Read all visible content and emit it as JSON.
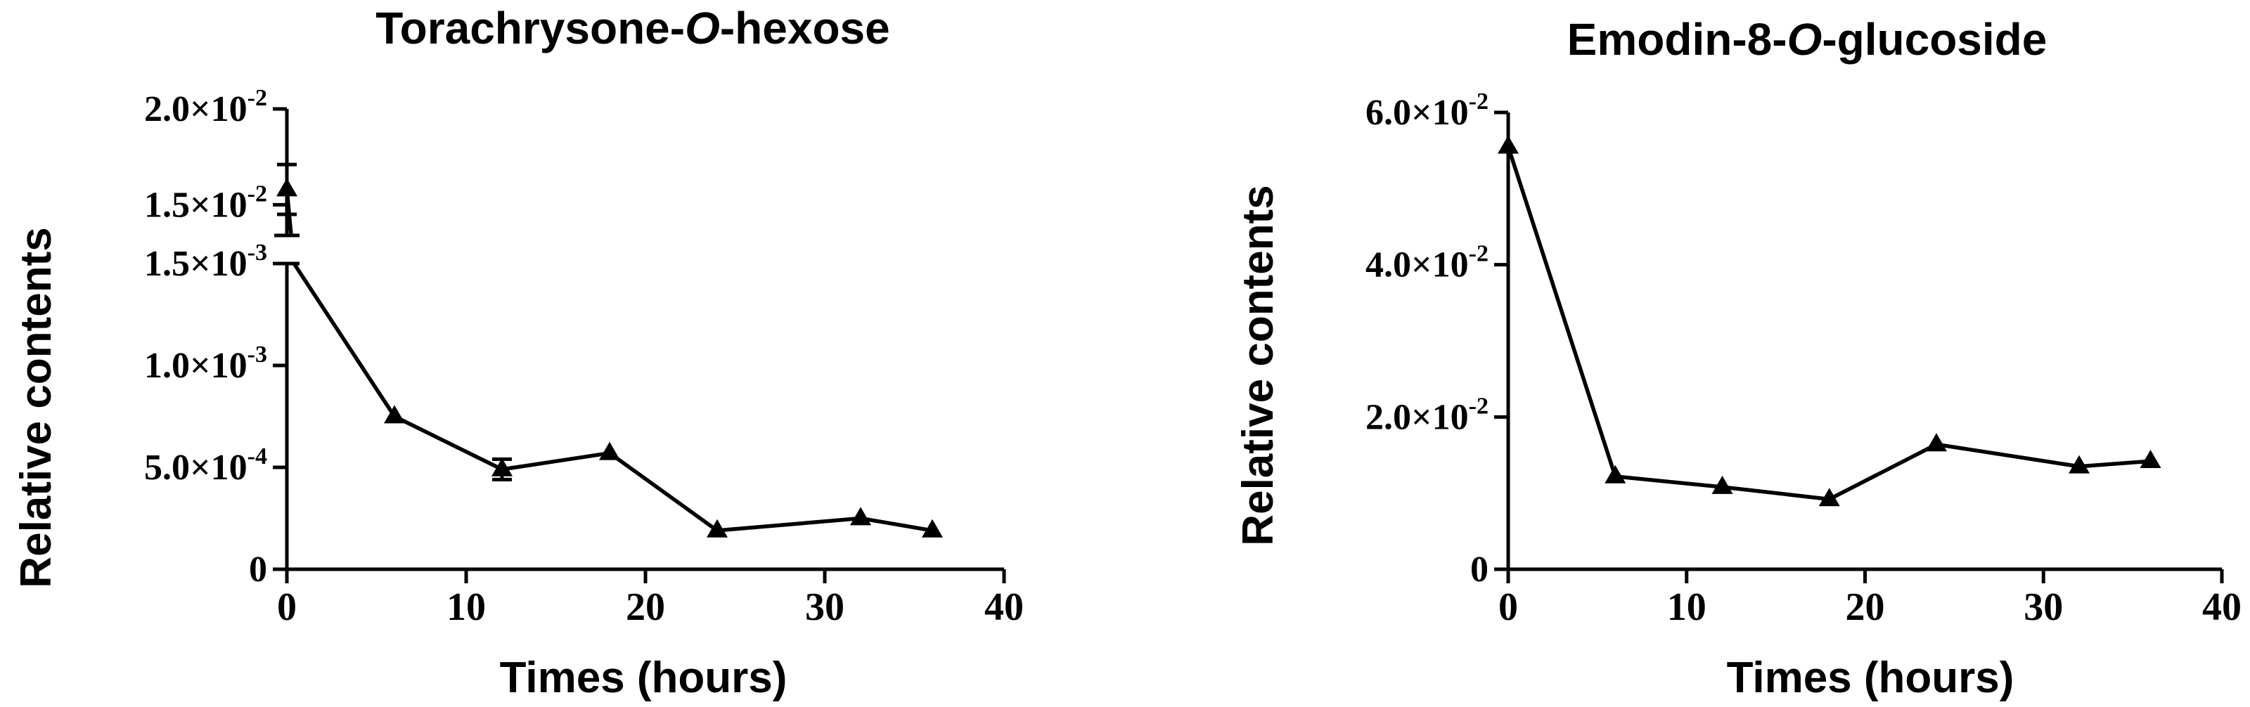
{
  "chart_data": [
    {
      "type": "line",
      "title": "Torachrysone-",
      "title_italic": "O",
      "title_suffix": "-hexose",
      "xlabel": "Times (hours)",
      "ylabel": "Relative contents",
      "xlim": [
        0,
        40
      ],
      "x_ticks": [
        "0",
        "10",
        "20",
        "30",
        "40"
      ],
      "y_axis_break": true,
      "y_ticks": [
        {
          "value": 0,
          "mantissa": "0",
          "exp": ""
        },
        {
          "value": 0.0005,
          "mantissa": "5.0×10",
          "exp": "-4"
        },
        {
          "value": 0.001,
          "mantissa": "1.0×10",
          "exp": "-3"
        },
        {
          "value": 0.0015,
          "mantissa": "1.5×10",
          "exp": "-3"
        },
        {
          "value": 0.015,
          "mantissa": "1.5×10",
          "exp": "-2"
        },
        {
          "value": 0.02,
          "mantissa": "2.0×10",
          "exp": "-2"
        }
      ],
      "marker": "triangle",
      "grid": false,
      "series": [
        {
          "x": [
            0,
            6,
            12,
            18,
            24,
            32,
            36
          ],
          "y": [
            0.0158,
            0.00075,
            0.00049,
            0.00057,
            0.00019,
            0.00025,
            0.00019
          ],
          "yerr": [
            0.0013,
            0,
            5e-05,
            0,
            0,
            0,
            0
          ]
        }
      ]
    },
    {
      "type": "line",
      "title": "Emodin-8-",
      "title_italic": "O",
      "title_suffix": "-glucoside",
      "xlabel": "Times (hours)",
      "ylabel": "Relative contents",
      "xlim": [
        0,
        40
      ],
      "ylim": [
        0,
        0.06
      ],
      "x_ticks": [
        "0",
        "10",
        "20",
        "30",
        "40"
      ],
      "y_ticks": [
        {
          "value": 0,
          "mantissa": "0",
          "exp": ""
        },
        {
          "value": 0.02,
          "mantissa": "2.0×10",
          "exp": "-2"
        },
        {
          "value": 0.04,
          "mantissa": "4.0×10",
          "exp": "-2"
        },
        {
          "value": 0.06,
          "mantissa": "6.0×10",
          "exp": "-2"
        }
      ],
      "marker": "triangle",
      "grid": false,
      "series": [
        {
          "x": [
            0,
            6,
            12,
            18,
            24,
            32,
            36
          ],
          "y": [
            0.0555,
            0.0122,
            0.0108,
            0.0092,
            0.0164,
            0.0135,
            0.0142
          ],
          "yerr": [
            0,
            0,
            0,
            0,
            0,
            0,
            0
          ]
        }
      ]
    }
  ]
}
